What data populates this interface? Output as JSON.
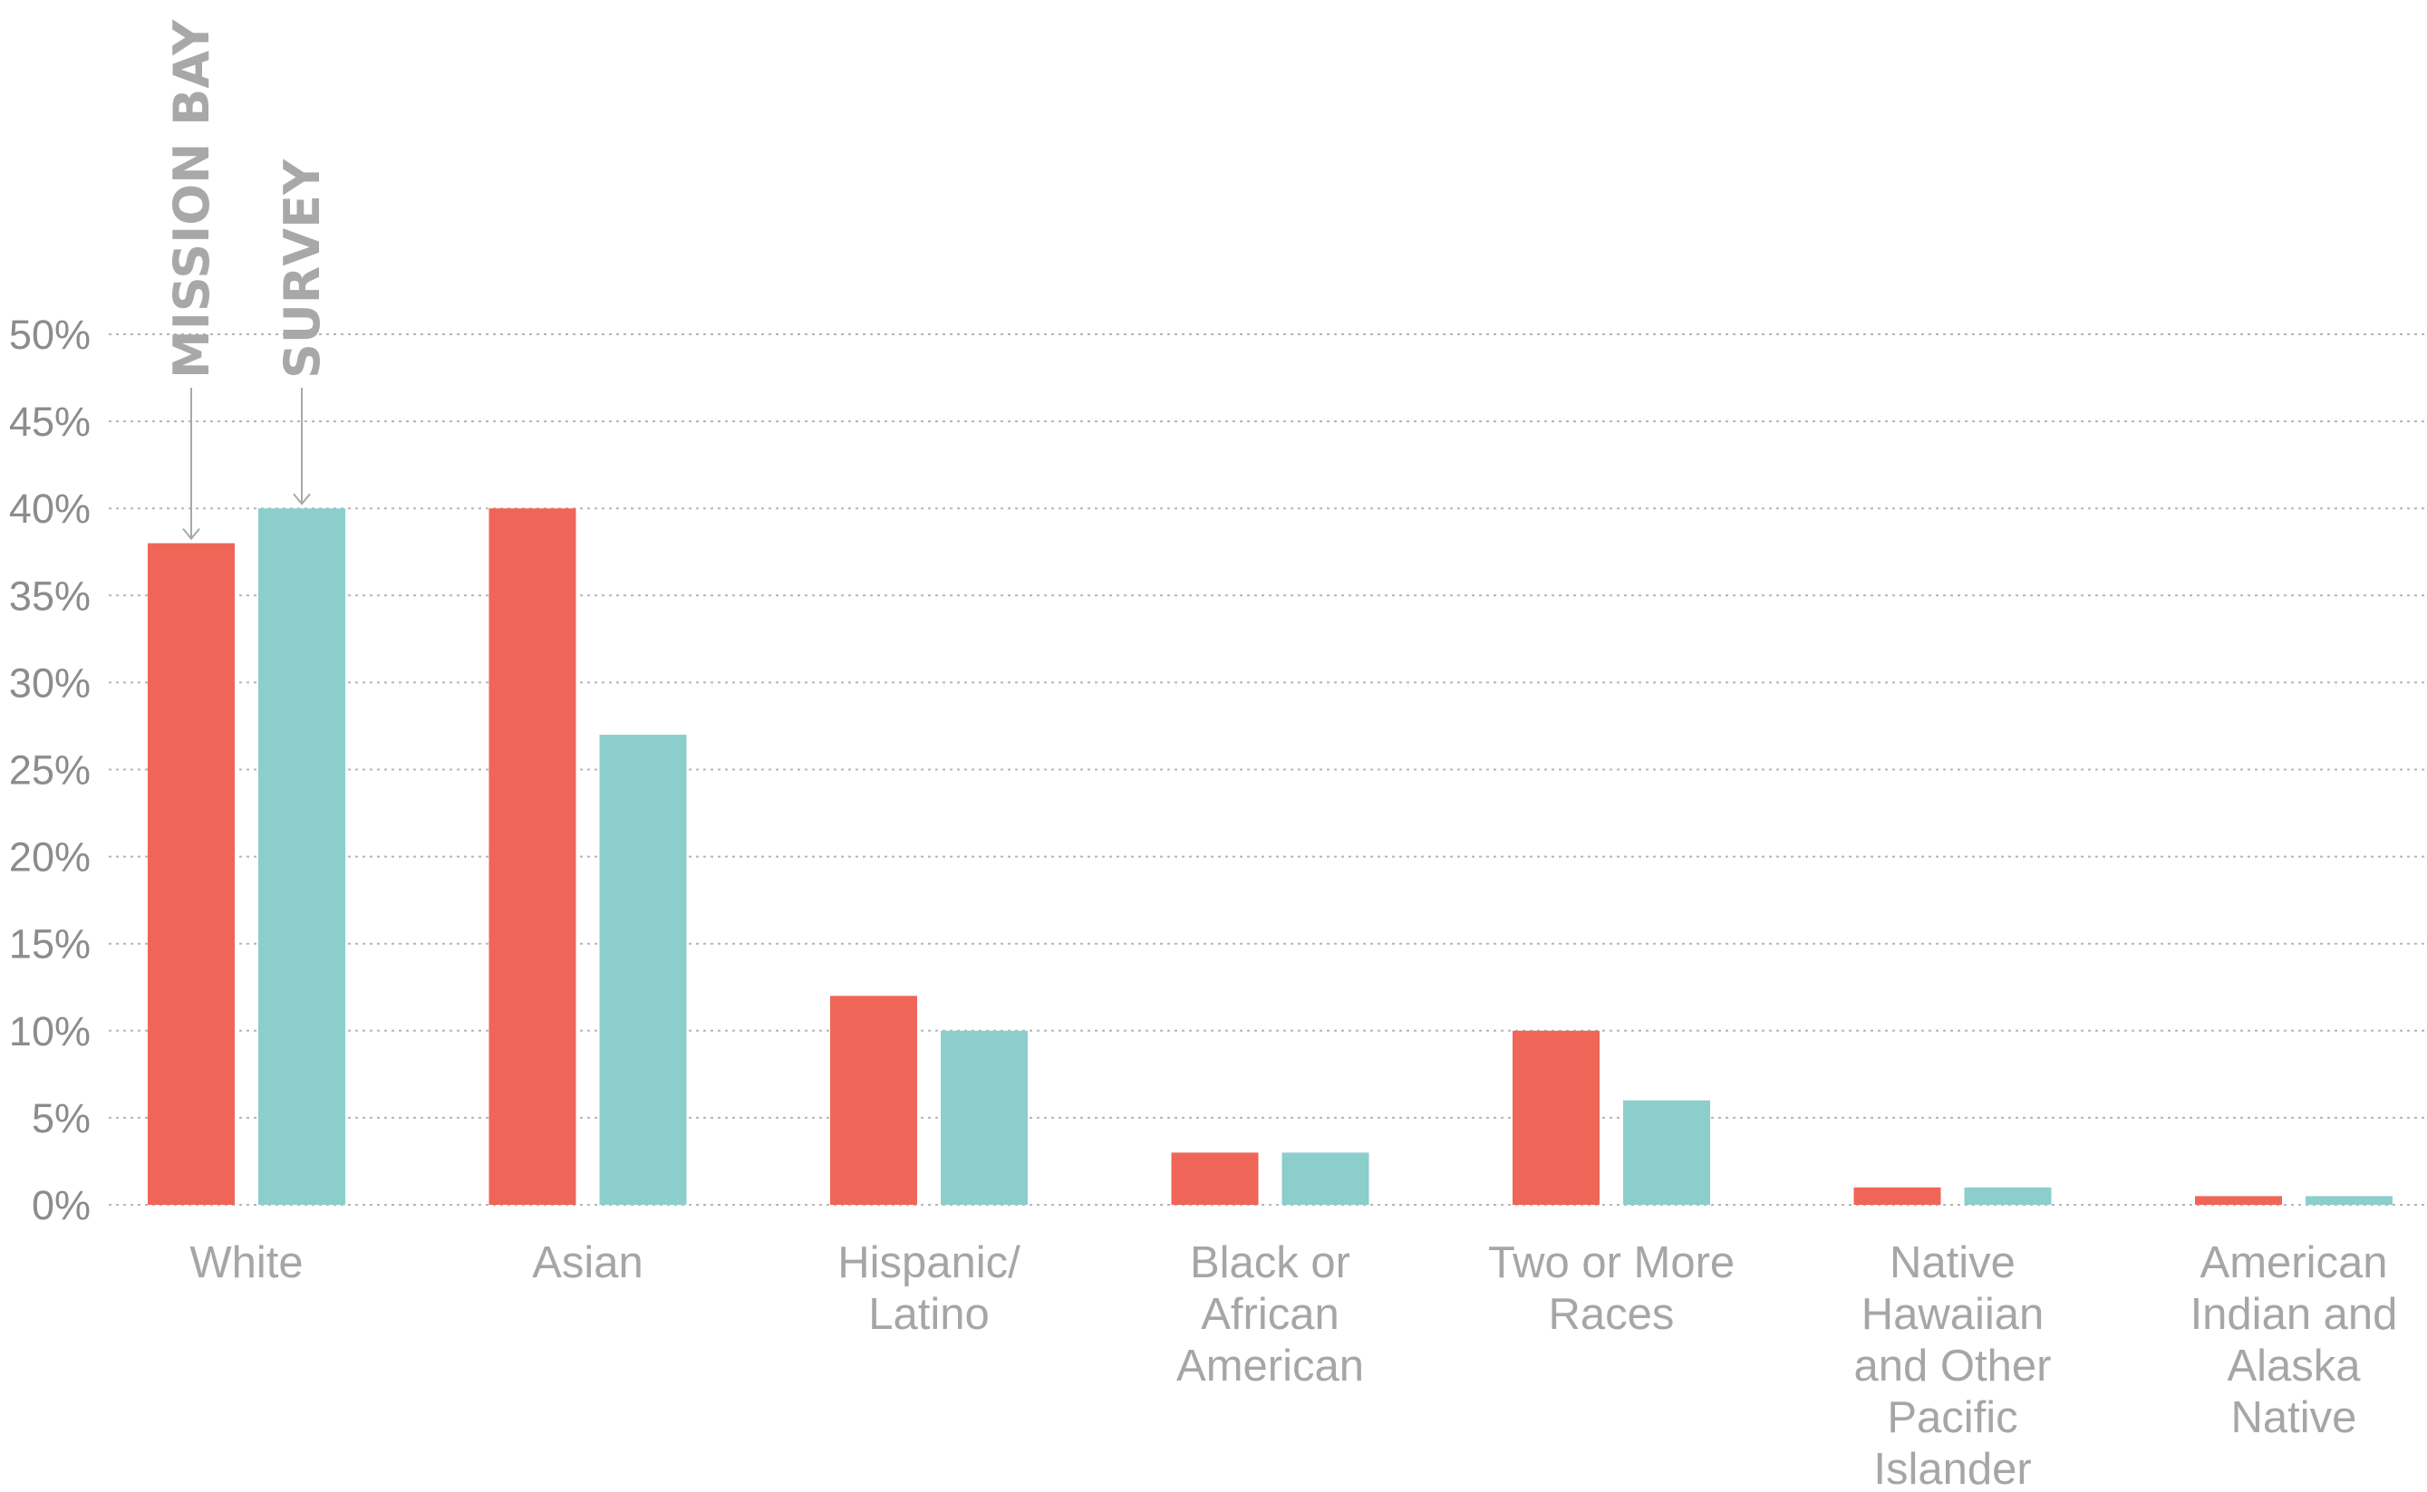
{
  "chart_data": {
    "type": "bar",
    "categories": [
      "White",
      "Asian",
      "Hispanic/\nLatino",
      "Black or\nAfrican\nAmerican",
      "Two or More\nRaces",
      "Native\nHawaiian\nand Other\nPacific\nIslander",
      "American\nIndian and\nAlaska\nNative"
    ],
    "series": [
      {
        "name": "MISSION BAY",
        "color": "#ef6659",
        "values": [
          38,
          40,
          12,
          3,
          10,
          1,
          0.5
        ]
      },
      {
        "name": "SURVEY",
        "color": "#8ccecc",
        "values": [
          40,
          27,
          10,
          3,
          6,
          1,
          0.5
        ]
      }
    ],
    "yticks": [
      "0%",
      "5%",
      "10%",
      "15%",
      "20%",
      "25%",
      "30%",
      "35%",
      "40%",
      "45%",
      "50%"
    ],
    "ylim": [
      0,
      50
    ],
    "grid": true,
    "legend": "vertical labels with arrows over first category"
  }
}
